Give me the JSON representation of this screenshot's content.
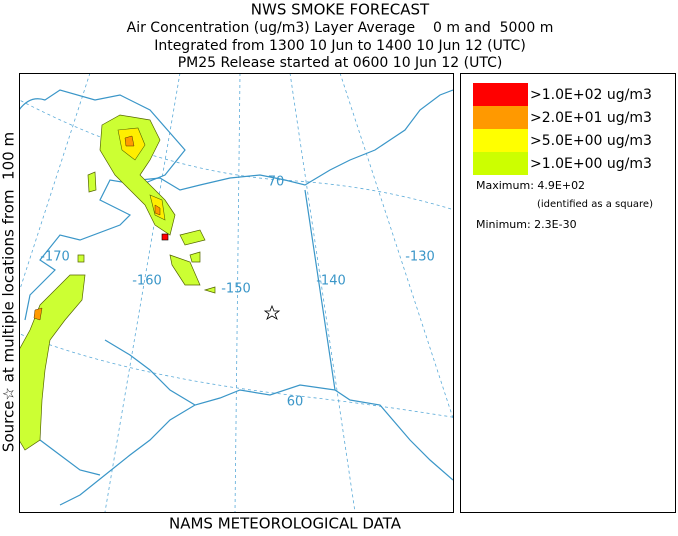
{
  "header": {
    "title": "NWS SMOKE FORECAST",
    "lines": [
      "Air Concentration (ug/m3) Layer Average    0 m and  5000 m",
      "Integrated from 1300 10 Jun to 1400 10 Jun 12 (UTC)",
      "PM25 Release started at 0600 10 Jun 12 (UTC)"
    ]
  },
  "side_label": "Source☆ at multiple locations from  100 m",
  "footer": "NAMS METEOROLOGICAL DATA",
  "map": {
    "labels": [
      "-170",
      "-160",
      "-150",
      "-140",
      "-130",
      "70",
      "60"
    ]
  },
  "legend": {
    "items": [
      {
        "label": ">1.0E+02 ug/m3",
        "color": "#ff0000"
      },
      {
        "label": ">2.0E+01 ug/m3",
        "color": "#ff9900"
      },
      {
        "label": ">5.0E+00 ug/m3",
        "color": "#ffff00"
      },
      {
        "label": ">1.0E+00 ug/m3",
        "color": "#ccff00"
      }
    ],
    "maximum": "Maximum: 4.9E+02",
    "max_note": "(identified as a square)",
    "minimum": "Minimum: 2.3E-30"
  }
}
